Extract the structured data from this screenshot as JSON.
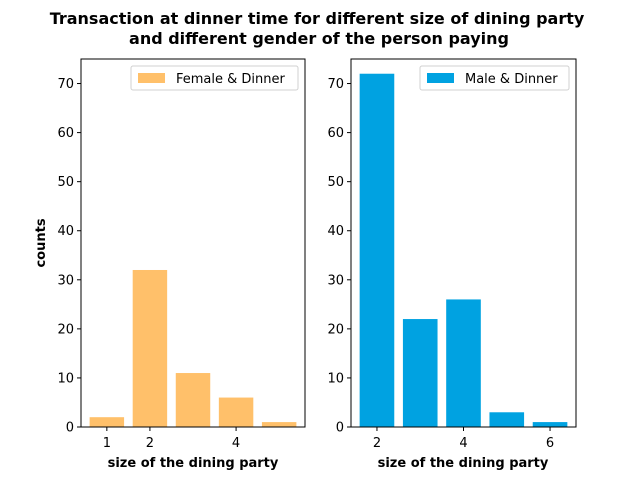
{
  "title_line1": "Transaction at dinner time for different size of dining party",
  "title_line2": "and different gender of the person paying",
  "colors": {
    "female": "#FFC06A",
    "male": "#00A2E1"
  },
  "chart_data": [
    {
      "type": "bar",
      "x": [
        1,
        2,
        3,
        4,
        5
      ],
      "values": [
        2,
        32,
        11,
        6,
        1
      ],
      "legend": "Female & Dinner",
      "legend_position": "upper right",
      "xlabel": "size of the dining party",
      "ylabel": "counts",
      "xticks": [
        1,
        2,
        4
      ],
      "yticks": [
        0,
        10,
        20,
        30,
        40,
        50,
        60,
        70
      ],
      "xlim": [
        0.4,
        5.6
      ],
      "ylim": [
        0,
        75
      ]
    },
    {
      "type": "bar",
      "x": [
        2,
        3,
        4,
        5,
        6
      ],
      "values": [
        72,
        22,
        26,
        3,
        1
      ],
      "legend": "Male & Dinner",
      "legend_position": "upper right",
      "xlabel": "size of the dining party",
      "ylabel": "",
      "xticks": [
        2,
        4,
        6
      ],
      "yticks": [
        0,
        10,
        20,
        30,
        40,
        50,
        60,
        70
      ],
      "xlim": [
        1.4,
        6.6
      ],
      "ylim": [
        0,
        75
      ]
    }
  ]
}
